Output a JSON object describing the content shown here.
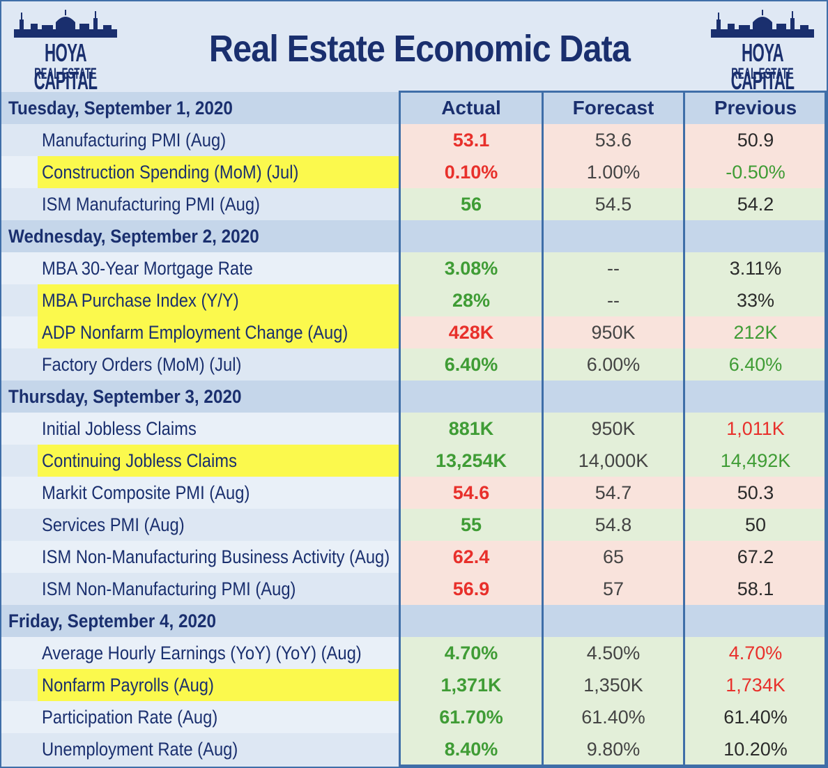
{
  "header": {
    "title": "Real Estate Economic Data",
    "logo_name": "HOYA CAPITAL",
    "logo_sub": "REAL ESTATE"
  },
  "columns": {
    "actual": "Actual",
    "forecast": "Forecast",
    "previous": "Previous"
  },
  "colors": {
    "negative": "#e8302b",
    "positive": "#3f9c35",
    "highlight": "#fbf94d",
    "navy": "#1a2f6e"
  },
  "sections": [
    {
      "date": "Tuesday, September 1, 2020",
      "rows": [
        {
          "name": "Manufacturing PMI (Aug)",
          "highlight": false,
          "actual": "53.1",
          "forecast": "53.6",
          "previous": "50.9",
          "tone": "red",
          "actual_color": "red",
          "previous_color": "dark"
        },
        {
          "name": "Construction Spending (MoM) (Jul)",
          "highlight": true,
          "actual": "0.10%",
          "forecast": "1.00%",
          "previous": "-0.50%",
          "tone": "red",
          "actual_color": "red",
          "previous_color": "green"
        },
        {
          "name": "ISM Manufacturing PMI (Aug)",
          "highlight": false,
          "actual": "56",
          "forecast": "54.5",
          "previous": "54.2",
          "tone": "green",
          "actual_color": "green",
          "previous_color": "dark"
        }
      ]
    },
    {
      "date": "Wednesday, September 2, 2020",
      "rows": [
        {
          "name": "MBA 30-Year Mortgage Rate",
          "highlight": false,
          "actual": "3.08%",
          "forecast": "--",
          "previous": "3.11%",
          "tone": "green",
          "actual_color": "green",
          "previous_color": "dark"
        },
        {
          "name": "MBA Purchase Index (Y/Y)",
          "highlight": true,
          "actual": "28%",
          "forecast": "--",
          "previous": "33%",
          "tone": "green",
          "actual_color": "green",
          "previous_color": "dark"
        },
        {
          "name": "ADP Nonfarm Employment Change (Aug)",
          "highlight": true,
          "actual": "428K",
          "forecast": "950K",
          "previous": "212K",
          "tone": "red",
          "actual_color": "red",
          "previous_color": "green"
        },
        {
          "name": "Factory Orders (MoM) (Jul)",
          "highlight": false,
          "actual": "6.40%",
          "forecast": "6.00%",
          "previous": "6.40%",
          "tone": "green",
          "actual_color": "green",
          "previous_color": "green"
        }
      ]
    },
    {
      "date": "Thursday, September 3, 2020",
      "rows": [
        {
          "name": "Initial Jobless Claims",
          "highlight": false,
          "actual": "881K",
          "forecast": "950K",
          "previous": "1,011K",
          "tone": "green",
          "actual_color": "green",
          "previous_color": "red"
        },
        {
          "name": "Continuing Jobless Claims",
          "highlight": true,
          "actual": "13,254K",
          "forecast": "14,000K",
          "previous": "14,492K",
          "tone": "green",
          "actual_color": "green",
          "previous_color": "green"
        },
        {
          "name": "Markit Composite PMI (Aug)",
          "highlight": false,
          "actual": "54.6",
          "forecast": "54.7",
          "previous": "50.3",
          "tone": "red",
          "actual_color": "red",
          "previous_color": "dark"
        },
        {
          "name": "Services PMI (Aug)",
          "highlight": false,
          "actual": "55",
          "forecast": "54.8",
          "previous": "50",
          "tone": "green",
          "actual_color": "green",
          "previous_color": "dark"
        },
        {
          "name": "ISM Non-Manufacturing Business Activity (Aug)",
          "highlight": false,
          "actual": "62.4",
          "forecast": "65",
          "previous": "67.2",
          "tone": "red",
          "actual_color": "red",
          "previous_color": "dark"
        },
        {
          "name": "ISM Non-Manufacturing PMI (Aug)",
          "highlight": false,
          "actual": "56.9",
          "forecast": "57",
          "previous": "58.1",
          "tone": "red",
          "actual_color": "red",
          "previous_color": "dark"
        }
      ]
    },
    {
      "date": "Friday, September 4, 2020",
      "rows": [
        {
          "name": "Average Hourly Earnings (YoY) (YoY) (Aug)",
          "highlight": false,
          "actual": "4.70%",
          "forecast": "4.50%",
          "previous": "4.70%",
          "tone": "green",
          "actual_color": "green",
          "previous_color": "red"
        },
        {
          "name": "Nonfarm Payrolls (Aug)",
          "highlight": true,
          "actual": "1,371K",
          "forecast": "1,350K",
          "previous": "1,734K",
          "tone": "green",
          "actual_color": "green",
          "previous_color": "red"
        },
        {
          "name": "Participation Rate (Aug)",
          "highlight": false,
          "actual": "61.70%",
          "forecast": "61.40%",
          "previous": "61.40%",
          "tone": "green",
          "actual_color": "green",
          "previous_color": "dark"
        },
        {
          "name": "Unemployment Rate (Aug)",
          "highlight": false,
          "actual": "8.40%",
          "forecast": "9.80%",
          "previous": "10.20%",
          "tone": "green",
          "actual_color": "green",
          "previous_color": "dark"
        }
      ]
    }
  ]
}
